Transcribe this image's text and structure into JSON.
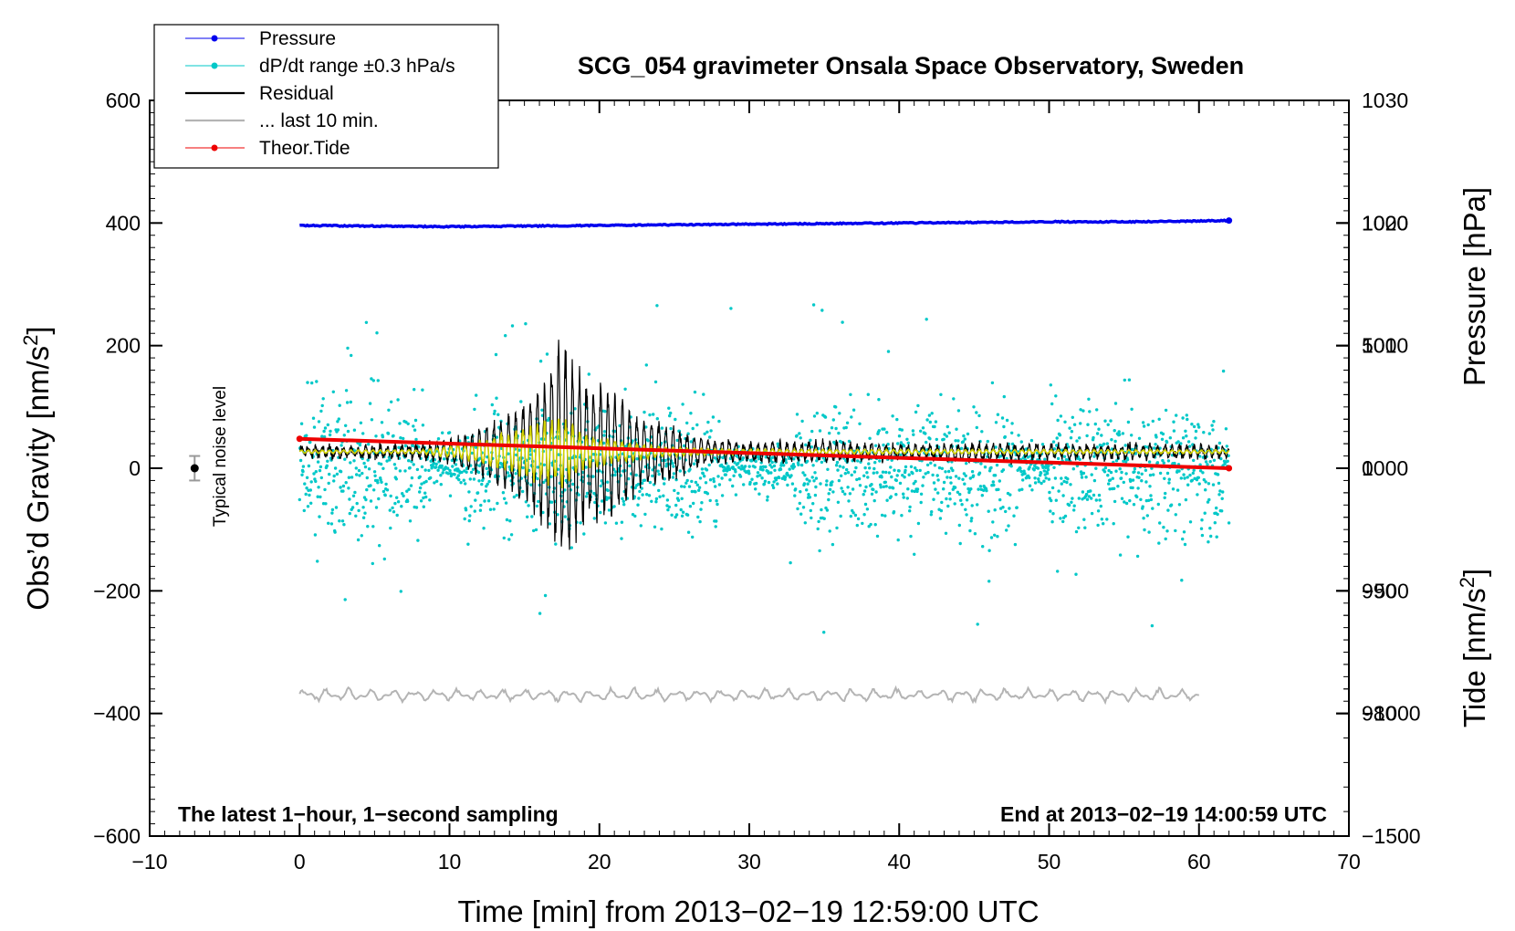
{
  "chart_data": {
    "type": "line",
    "title": "SCG_054 gravimeter Onsala Space Observatory, Sweden",
    "xlabel": "Time [min] from 2013−02−19 12:59:00 UTC",
    "ylabel_left": "Obs’d Gravity [nm/s",
    "ylabel_left_sup": "2",
    "ylabel_left_end": "]",
    "ylabel_right_pressure": "Pressure [hPa]",
    "ylabel_right_tide": "Tide [nm/s",
    "ylabel_right_tide_sup": "2",
    "ylabel_right_tide_end": "]",
    "xlim": [
      -10,
      70
    ],
    "ylim": [
      -600,
      600
    ],
    "pressure_lim": [
      970,
      1030
    ],
    "tide_lim": [
      -1500,
      1500
    ],
    "x_ticks": [
      "−10",
      "0",
      "10",
      "20",
      "30",
      "40",
      "50",
      "60",
      "70"
    ],
    "y_ticks_left": [
      "600",
      "400",
      "200",
      "0",
      "−200",
      "−400",
      "−600"
    ],
    "y_ticks_pressure": [
      "1030",
      "1020",
      "1010",
      "1000",
      "990",
      "980"
    ],
    "y_ticks_tide": [
      "1000",
      "500",
      "0",
      "−500",
      "−1000",
      "−1500"
    ],
    "note_left": "The latest 1−hour, 1−second sampling",
    "note_right": "End at 2013−02−19 14:00:59 UTC",
    "noise_label": "Typical noise level",
    "noise_marker": {
      "x": -7,
      "y": 0,
      "err": 20
    },
    "legend_placement": "top-left",
    "legend": [
      {
        "label": "Pressure",
        "color": "#0000ee",
        "marker": true
      },
      {
        "label": "dP/dt range ±0.3 hPa/s",
        "color": "#00c8c8",
        "marker": true
      },
      {
        "label": "Residual",
        "color": "#000000",
        "marker": false
      },
      {
        "label": "... last 10 min.",
        "color": "#b4b4b4",
        "marker": false
      },
      {
        "label": "Theor.Tide",
        "color": "#ee0000",
        "marker": true
      }
    ],
    "series": [
      {
        "name": "Pressure",
        "axis": "pressure",
        "color": "#0000ee",
        "x": [
          0,
          10,
          20,
          30,
          40,
          50,
          56,
          62
        ],
        "y": [
          1019.8,
          1019.7,
          1019.8,
          1019.9,
          1020.0,
          1020.1,
          1020.1,
          1020.2
        ]
      },
      {
        "name": "dP/dt range ±0.3 hPa/s",
        "axis": "pressure",
        "color": "#00c8c8",
        "center": 1000,
        "spread": 3,
        "outlier_max": 13.5,
        "x_range": [
          0,
          62
        ]
      },
      {
        "name": "Residual",
        "axis": "gravity",
        "color": "#000000",
        "baseline": 27,
        "noise": 7,
        "x_range": [
          0,
          62
        ],
        "envelope": {
          "x": [
            0,
            8,
            11,
            14,
            16,
            17.5,
            19,
            21,
            23,
            25,
            27,
            30,
            35,
            40,
            45,
            50,
            55,
            62
          ],
          "amp": [
            8,
            10,
            28,
            70,
            120,
            200,
            130,
            110,
            60,
            45,
            22,
            15,
            18,
            10,
            15,
            10,
            12,
            8
          ]
        }
      },
      {
        "name": "filtered",
        "axis": "gravity",
        "color": "#d2d200",
        "baseline": 27,
        "x_range": [
          0,
          62
        ],
        "envelope": {
          "x": [
            0,
            8,
            11,
            14,
            16,
            17.5,
            19,
            21,
            23,
            25,
            28,
            35,
            62
          ],
          "amp": [
            3,
            3,
            14,
            35,
            55,
            60,
            32,
            20,
            12,
            8,
            5,
            4,
            3
          ]
        }
      },
      {
        "name": "... last 10 min.",
        "axis": "gravity",
        "color": "#b4b4b4",
        "baseline": -370,
        "amp": 10,
        "x_range": [
          0,
          60
        ]
      },
      {
        "name": "Theor.Tide",
        "axis": "tide",
        "color": "#ee0000",
        "x": [
          0,
          62
        ],
        "y": [
          120,
          0
        ]
      }
    ]
  }
}
